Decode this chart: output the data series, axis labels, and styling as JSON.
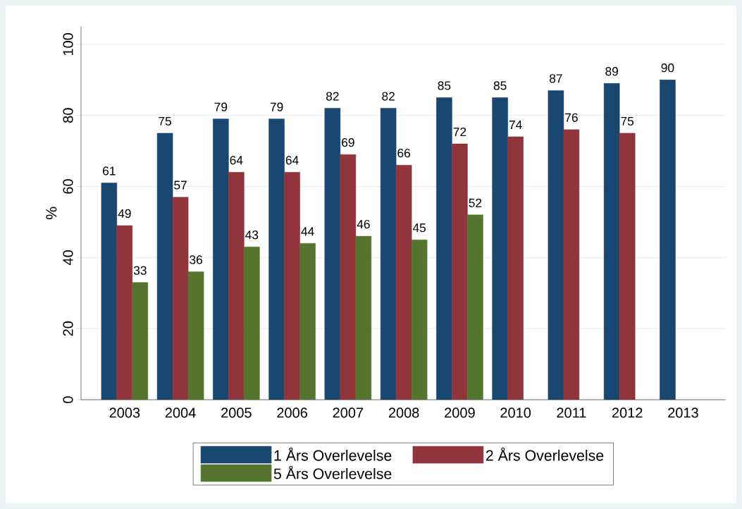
{
  "chart_data": {
    "type": "bar",
    "ylabel": "%",
    "categories": [
      "2003",
      "2004",
      "2005",
      "2006",
      "2007",
      "2008",
      "2009",
      "2010",
      "2011",
      "2012",
      "2013"
    ],
    "series": [
      {
        "name": "1 Års Overlevelse",
        "color": "#1a476f",
        "values": [
          61,
          75,
          79,
          79,
          82,
          82,
          85,
          85,
          87,
          89,
          90
        ]
      },
      {
        "name": "2 Års Overlevelse",
        "color": "#90353b",
        "values": [
          49,
          57,
          64,
          64,
          69,
          66,
          72,
          74,
          76,
          75,
          null
        ]
      },
      {
        "name": "5 Års Overlevelse",
        "color": "#55752f",
        "values": [
          33,
          36,
          43,
          44,
          46,
          45,
          52,
          null,
          null,
          null,
          null
        ]
      }
    ],
    "ylim": [
      0,
      105
    ],
    "yticks": [
      0,
      20,
      40,
      60,
      80,
      100
    ],
    "grid": "y",
    "legend": "bottom",
    "data_labels": true
  }
}
